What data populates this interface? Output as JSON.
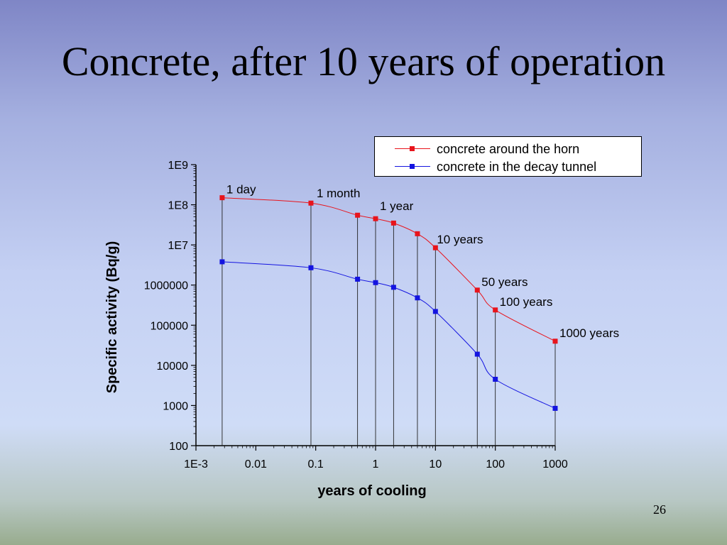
{
  "slide": {
    "title": "Concrete, after 10 years of operation",
    "number": "26"
  },
  "chart_data": {
    "type": "line",
    "title": "",
    "xlabel": "years of cooling",
    "ylabel": "Specific activity (Bq/g)",
    "xscale": "log",
    "yscale": "log",
    "xlim": [
      0.001,
      1000
    ],
    "ylim": [
      100,
      1000000000
    ],
    "x_ticks": [
      {
        "value": 0.001,
        "label": "1E-3"
      },
      {
        "value": 0.01,
        "label": "0.01"
      },
      {
        "value": 0.1,
        "label": "0.1"
      },
      {
        "value": 1,
        "label": "1"
      },
      {
        "value": 10,
        "label": "10"
      },
      {
        "value": 100,
        "label": "100"
      },
      {
        "value": 1000,
        "label": "1000"
      }
    ],
    "y_ticks": [
      {
        "value": 100,
        "label": "100"
      },
      {
        "value": 1000,
        "label": "1000"
      },
      {
        "value": 10000,
        "label": "10000"
      },
      {
        "value": 100000,
        "label": "100000"
      },
      {
        "value": 1000000,
        "label": "1000000"
      },
      {
        "value": 10000000,
        "label": "1E7"
      },
      {
        "value": 100000000,
        "label": "1E8"
      },
      {
        "value": 1000000000,
        "label": "1E9"
      }
    ],
    "grid": false,
    "legend_position": "top-right",
    "x": [
      0.00274,
      0.0833,
      0.5,
      1,
      2,
      5,
      10,
      50,
      100,
      1000
    ],
    "series": [
      {
        "name": "concrete around the horn",
        "color": "#e8141c",
        "values": [
          150000000,
          110000000,
          55000000,
          45000000,
          35000000,
          19000000,
          8500000,
          750000,
          240000,
          40000
        ]
      },
      {
        "name": "concrete in the decay tunnel",
        "color": "#1414e0",
        "values": [
          3800000,
          2700000,
          1400000,
          1150000,
          880000,
          480000,
          220000,
          19000,
          4500,
          850
        ]
      }
    ],
    "annotations": [
      {
        "text": "1 day",
        "x": 0.00274
      },
      {
        "text": "1 month",
        "x": 0.0833
      },
      {
        "text": "1 year",
        "x": 1
      },
      {
        "text": "10 years",
        "x": 10
      },
      {
        "text": "50 years",
        "x": 50
      },
      {
        "text": "100 years",
        "x": 100
      },
      {
        "text": "1000 years",
        "x": 1000
      }
    ]
  }
}
